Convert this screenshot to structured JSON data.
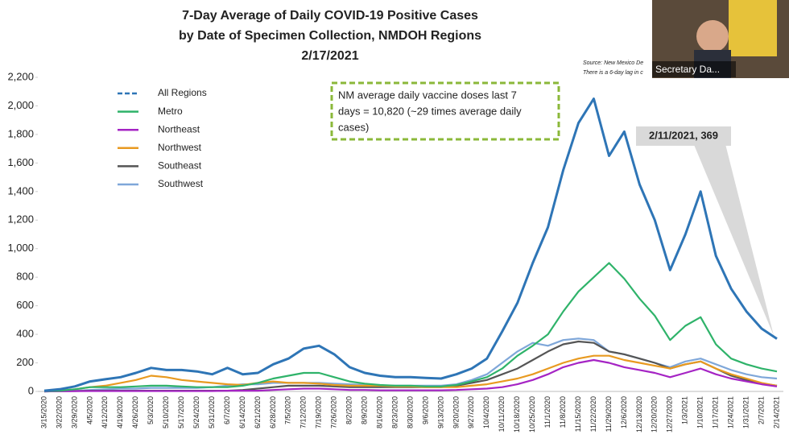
{
  "chart_data": {
    "type": "line",
    "title": [
      "7-Day Average of Daily COVID-19 Positive Cases",
      "by Date of Specimen Collection, NMDOH Regions",
      "2/17/2021"
    ],
    "source": [
      "Source: New Mexico De",
      "There is a 6-day lag in c"
    ],
    "note": [
      "NM average daily vaccine doses last 7",
      "days = 10,820 (~29 times average daily",
      "cases)"
    ],
    "callout": "2/11/2021, 369",
    "categories": [
      "3/15/2020",
      "3/22/2020",
      "3/29/2020",
      "4/5/2020",
      "4/12/2020",
      "4/19/2020",
      "4/26/2020",
      "5/3/2020",
      "5/10/2020",
      "5/17/2020",
      "5/24/2020",
      "5/31/2020",
      "6/7/2020",
      "6/14/2020",
      "6/21/2020",
      "6/28/2020",
      "7/5/2020",
      "7/12/2020",
      "7/19/2020",
      "7/26/2020",
      "8/2/2020",
      "8/9/2020",
      "8/16/2020",
      "8/23/2020",
      "8/30/2020",
      "9/6/2020",
      "9/13/2020",
      "9/20/2020",
      "9/27/2020",
      "10/4/2020",
      "10/11/2020",
      "10/18/2020",
      "10/25/2020",
      "11/1/2020",
      "11/8/2020",
      "11/15/2020",
      "11/22/2020",
      "11/29/2020",
      "12/6/2020",
      "12/13/2020",
      "12/20/2020",
      "12/27/2020",
      "1/3/2021",
      "1/10/2021",
      "1/17/2021",
      "1/24/2021",
      "1/31/2021",
      "2/7/2021",
      "2/14/2021"
    ],
    "series": [
      {
        "name": "All Regions",
        "color": "#2e75b6",
        "values": [
          5,
          15,
          35,
          70,
          85,
          100,
          130,
          165,
          150,
          150,
          140,
          120,
          165,
          120,
          130,
          190,
          230,
          300,
          320,
          260,
          170,
          130,
          110,
          100,
          100,
          95,
          90,
          120,
          160,
          230,
          420,
          620,
          900,
          1150,
          1550,
          1880,
          2050,
          1650,
          1820,
          1450,
          1200,
          850,
          1100,
          1400,
          950,
          720,
          560,
          440,
          369
        ]
      },
      {
        "name": "Metro",
        "color": "#2fb36a",
        "values": [
          2,
          5,
          15,
          30,
          30,
          30,
          35,
          40,
          40,
          35,
          30,
          30,
          30,
          40,
          60,
          90,
          110,
          130,
          130,
          100,
          70,
          55,
          45,
          40,
          40,
          35,
          35,
          45,
          70,
          100,
          160,
          250,
          320,
          400,
          560,
          700,
          800,
          900,
          790,
          650,
          530,
          360,
          460,
          520,
          330,
          230,
          190,
          160,
          140
        ]
      },
      {
        "name": "Northeast",
        "color": "#a524c4",
        "values": [
          0,
          1,
          2,
          3,
          3,
          3,
          3,
          3,
          3,
          3,
          3,
          3,
          5,
          5,
          5,
          10,
          15,
          20,
          20,
          15,
          10,
          10,
          8,
          8,
          8,
          8,
          8,
          10,
          15,
          20,
          30,
          50,
          80,
          120,
          170,
          200,
          220,
          200,
          170,
          150,
          130,
          100,
          130,
          160,
          120,
          90,
          70,
          50,
          35
        ]
      },
      {
        "name": "Northwest",
        "color": "#e89a20",
        "values": [
          0,
          5,
          15,
          30,
          40,
          60,
          80,
          110,
          100,
          80,
          70,
          60,
          50,
          45,
          60,
          70,
          60,
          60,
          55,
          45,
          40,
          40,
          40,
          35,
          35,
          30,
          30,
          30,
          40,
          50,
          70,
          90,
          120,
          160,
          200,
          230,
          250,
          250,
          220,
          200,
          180,
          160,
          190,
          210,
          160,
          120,
          90,
          60,
          40
        ]
      },
      {
        "name": "Southeast",
        "color": "#555555",
        "values": [
          0,
          2,
          3,
          5,
          5,
          5,
          5,
          5,
          5,
          5,
          5,
          5,
          5,
          10,
          20,
          30,
          40,
          40,
          40,
          35,
          30,
          30,
          30,
          30,
          30,
          30,
          30,
          40,
          60,
          80,
          120,
          160,
          220,
          280,
          330,
          350,
          340,
          280,
          260,
          230,
          200,
          160,
          190,
          210,
          160,
          110,
          80,
          55,
          40
        ]
      },
      {
        "name": "Southwest",
        "color": "#7fa7d9",
        "values": [
          0,
          2,
          5,
          10,
          15,
          20,
          20,
          25,
          25,
          25,
          25,
          30,
          40,
          50,
          50,
          60,
          60,
          60,
          60,
          55,
          50,
          45,
          40,
          40,
          40,
          40,
          40,
          50,
          80,
          120,
          200,
          280,
          340,
          320,
          360,
          370,
          360,
          280,
          260,
          230,
          200,
          170,
          210,
          230,
          190,
          150,
          120,
          100,
          90
        ]
      }
    ],
    "ylim": [
      0,
      2200
    ],
    "yticks": [
      0,
      200,
      400,
      600,
      800,
      {
        "value": 1000,
        "label": "1,000"
      },
      {
        "value": 1200,
        "label": "1,200"
      },
      {
        "value": 1400,
        "label": "1,400"
      },
      {
        "value": 1600,
        "label": "1,600"
      },
      {
        "value": 1800,
        "label": "1,800"
      },
      {
        "value": 2000,
        "label": "2,000"
      },
      {
        "value": 2200,
        "label": "2,200"
      }
    ],
    "grid": false
  },
  "overlay": {
    "label": "Secretary Da..."
  }
}
